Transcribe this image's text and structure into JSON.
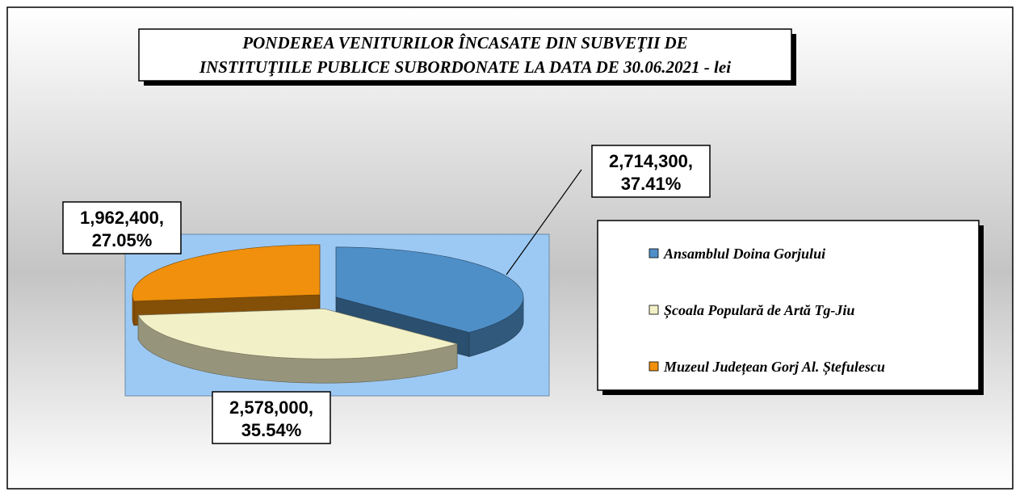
{
  "chart_data": {
    "type": "pie",
    "title": [
      "PONDEREA VENITURILOR ÎNCASATE DIN SUBVEŢII  DE",
      "INSTITUŢIILE PUBLICE SUBORDONATE LA DATA DE 30.06.2021 - lei"
    ],
    "categories": [
      "Ansamblul Doina Gorjului",
      "Școala Populară de Artă Tg-Jiu",
      "Muzeul Județean Gorj Al. Ștefulescu"
    ],
    "values": [
      2714300,
      2578000,
      1962400
    ],
    "value_labels": [
      "2,714,300,",
      "2,578,000,",
      "1,962,400,"
    ],
    "percent_labels": [
      "37.41%",
      "35.54%",
      "27.05%"
    ],
    "colors": [
      "#4f8fc8",
      "#f2f0c6",
      "#f0900c"
    ],
    "legend": "right"
  }
}
